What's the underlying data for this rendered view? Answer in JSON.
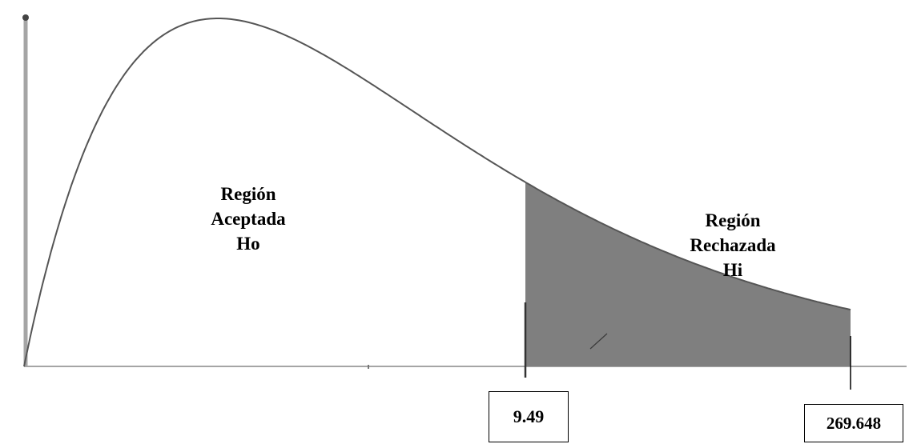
{
  "figure": {
    "curve_type": "chi-square",
    "accept_region": {
      "lines": [
        "Región",
        "Aceptada",
        "Ho"
      ]
    },
    "reject_region": {
      "lines": [
        "Región",
        "Rechazada",
        "Hi"
      ]
    },
    "critical_value": "9.49",
    "test_statistic": "269.648",
    "colors": {
      "curve": "#555555",
      "shaded_region": "#7f7f7f",
      "y_axis": "#9a9a9a",
      "x_axis": "#9a9a9a",
      "text": "#000000"
    }
  }
}
